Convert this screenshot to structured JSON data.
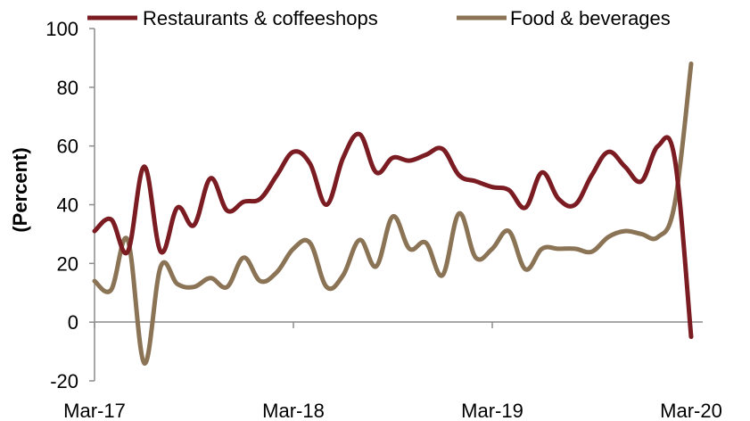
{
  "chart_data": {
    "type": "line",
    "ylabel": "(Percent)",
    "xlabel": "",
    "ylim": [
      -20,
      100
    ],
    "yticks": [
      -20,
      0,
      20,
      40,
      60,
      80,
      100
    ],
    "xlim": [
      "2017-03",
      "2020-03"
    ],
    "xticks": [
      "Mar-17",
      "Mar-18",
      "Mar-19",
      "Mar-20"
    ],
    "grid": false,
    "legend_position": "top",
    "series": [
      {
        "name": "Restaurants & coffeeshops",
        "color": "#7b1c22",
        "points": [
          [
            "2017-03",
            31
          ],
          [
            "2017-04",
            35
          ],
          [
            "2017-05",
            24
          ],
          [
            "2017-06",
            53
          ],
          [
            "2017-07",
            24
          ],
          [
            "2017-08",
            39
          ],
          [
            "2017-09",
            33
          ],
          [
            "2017-10",
            49
          ],
          [
            "2017-11",
            38
          ],
          [
            "2017-12",
            41
          ],
          [
            "2018-01",
            42
          ],
          [
            "2018-02",
            50
          ],
          [
            "2018-03",
            58
          ],
          [
            "2018-04",
            54
          ],
          [
            "2018-05",
            40
          ],
          [
            "2018-06",
            56
          ],
          [
            "2018-07",
            64
          ],
          [
            "2018-08",
            51
          ],
          [
            "2018-09",
            56
          ],
          [
            "2018-10",
            55
          ],
          [
            "2018-11",
            57
          ],
          [
            "2018-12",
            59
          ],
          [
            "2019-01",
            50
          ],
          [
            "2019-02",
            48
          ],
          [
            "2019-03",
            46
          ],
          [
            "2019-04",
            45
          ],
          [
            "2019-05",
            39
          ],
          [
            "2019-06",
            51
          ],
          [
            "2019-07",
            42
          ],
          [
            "2019-08",
            40
          ],
          [
            "2019-09",
            50
          ],
          [
            "2019-10",
            58
          ],
          [
            "2019-11",
            53
          ],
          [
            "2019-12",
            48
          ],
          [
            "2020-01",
            60
          ],
          [
            "2020-02",
            56
          ],
          [
            "2020-03",
            -5
          ]
        ]
      },
      {
        "name": "Food & beverages",
        "color": "#8b7355",
        "points": [
          [
            "2017-03",
            14
          ],
          [
            "2017-04",
            11
          ],
          [
            "2017-05",
            28
          ],
          [
            "2017-06",
            -14
          ],
          [
            "2017-07",
            19
          ],
          [
            "2017-08",
            13
          ],
          [
            "2017-09",
            12
          ],
          [
            "2017-10",
            15
          ],
          [
            "2017-11",
            12
          ],
          [
            "2017-12",
            22
          ],
          [
            "2018-01",
            14
          ],
          [
            "2018-02",
            17
          ],
          [
            "2018-03",
            25
          ],
          [
            "2018-04",
            27
          ],
          [
            "2018-05",
            12
          ],
          [
            "2018-06",
            16
          ],
          [
            "2018-07",
            28
          ],
          [
            "2018-08",
            19
          ],
          [
            "2018-09",
            36
          ],
          [
            "2018-10",
            25
          ],
          [
            "2018-11",
            27
          ],
          [
            "2018-12",
            16
          ],
          [
            "2019-01",
            37
          ],
          [
            "2019-02",
            22
          ],
          [
            "2019-03",
            25
          ],
          [
            "2019-04",
            31
          ],
          [
            "2019-05",
            18
          ],
          [
            "2019-06",
            25
          ],
          [
            "2019-07",
            25
          ],
          [
            "2019-08",
            25
          ],
          [
            "2019-09",
            24
          ],
          [
            "2019-10",
            29
          ],
          [
            "2019-11",
            31
          ],
          [
            "2019-12",
            30
          ],
          [
            "2020-01",
            29
          ],
          [
            "2020-02",
            40
          ],
          [
            "2020-03",
            88
          ]
        ]
      }
    ]
  }
}
